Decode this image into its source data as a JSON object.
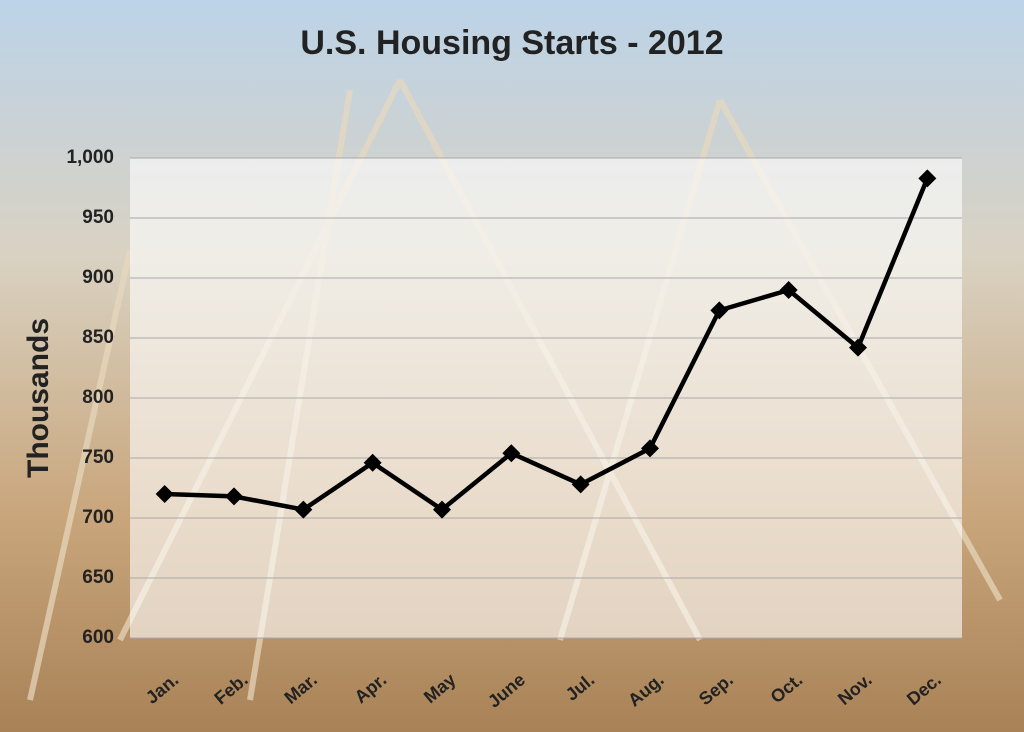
{
  "chart_data": {
    "type": "line",
    "title": "U.S. Housing Starts - 2012",
    "y_label": "Thousands",
    "categories": [
      "Jan.",
      "Feb.",
      "Mar.",
      "Apr.",
      "May",
      "June",
      "Jul.",
      "Aug.",
      "Sep.",
      "Oct.",
      "Nov.",
      "Dec."
    ],
    "values": [
      720,
      718,
      707,
      746,
      707,
      754,
      728,
      758,
      873,
      890,
      842,
      983
    ],
    "color": "#000000",
    "ylim": [
      600,
      1000
    ],
    "yticks": [
      600,
      650,
      700,
      750,
      800,
      850,
      900,
      950,
      {
        "value": 1000,
        "label": "1,000"
      }
    ],
    "grid": true
  }
}
